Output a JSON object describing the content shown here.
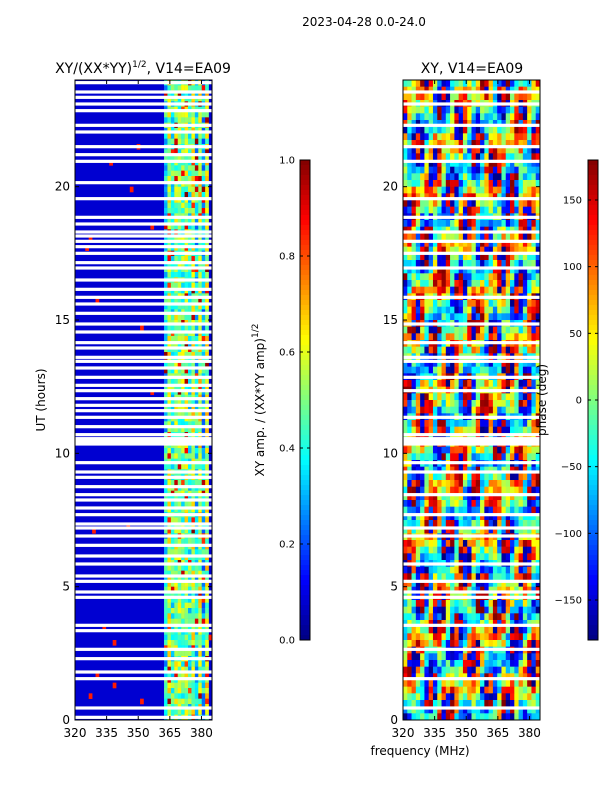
{
  "suptitle": "2023-04-28 0.0-24.0",
  "xlabel_shared": "frequency (MHz)",
  "chart_data": [
    {
      "type": "heatmap",
      "title_main": "XY/(XX*YY)",
      "title_sup": "1/2",
      "title_rest": ", V14=EA09",
      "xlabel": "frequency (MHz)",
      "ylabel": "UT (hours)",
      "xlim": [
        320,
        385
      ],
      "ylim": [
        0,
        24
      ],
      "xticks": [
        320,
        335,
        350,
        365,
        380
      ],
      "yticks": [
        0,
        5,
        10,
        15,
        20
      ],
      "colorbar": {
        "label_main": "XY amp. / (XX*YY amp)",
        "label_sup": "1/2",
        "range": [
          0.0,
          1.0
        ],
        "ticks": [
          "0.0",
          "0.2",
          "0.4",
          "0.6",
          "0.8",
          "1.0"
        ],
        "tick_values": [
          0.0,
          0.2,
          0.4,
          0.6,
          0.8,
          1.0
        ],
        "colormap": "jet"
      },
      "hot_band_mhz": [
        362,
        383
      ],
      "blank_rows_hours": [
        0.1,
        0.45,
        1.55,
        1.8,
        2.3,
        2.65,
        3.35,
        3.55,
        4.6,
        4.8,
        5.2,
        5.4,
        5.85,
        6.15,
        6.55,
        6.9,
        7.2,
        7.35,
        7.7,
        7.95,
        8.25,
        8.45,
        8.75,
        9.1,
        9.3,
        9.65,
        10.35,
        10.45,
        10.55,
        10.7,
        11.0,
        11.35,
        11.6,
        11.8,
        12.05,
        12.35,
        12.55,
        12.85,
        13.2,
        13.45,
        13.6,
        13.95,
        14.15,
        14.55,
        14.85,
        15.25,
        15.6,
        15.85,
        16.15,
        16.5,
        16.95,
        17.15,
        17.5,
        17.75,
        17.95,
        18.15,
        18.3,
        18.6,
        18.85,
        19.55,
        20.15,
        20.95,
        21.2,
        21.5,
        22.05,
        22.3,
        22.85,
        23.1,
        23.35,
        23.55,
        23.9
      ]
    },
    {
      "type": "heatmap",
      "title": "XY, V14=EA09",
      "xlabel": "frequency (MHz)",
      "ylabel": "",
      "xlim": [
        320,
        385
      ],
      "ylim": [
        0,
        24
      ],
      "xticks": [
        320,
        335,
        350,
        365,
        380
      ],
      "yticks": [
        0,
        5,
        10,
        15,
        20
      ],
      "colorbar": {
        "label": "phase (deg)",
        "range": [
          -180,
          180
        ],
        "ticks": [
          "150",
          "100",
          "50",
          "0",
          "−50",
          "−100",
          "−150"
        ],
        "tick_values": [
          150,
          100,
          50,
          0,
          -50,
          -100,
          -150
        ],
        "colormap": "jet"
      },
      "blank_rows_hours": [
        0.45,
        1.55,
        2.65,
        3.55,
        4.6,
        4.8,
        5.2,
        5.85,
        6.9,
        7.2,
        7.7,
        8.45,
        9.3,
        9.65,
        10.35,
        10.45,
        10.55,
        10.7,
        11.35,
        12.35,
        12.85,
        13.45,
        13.6,
        14.15,
        14.85,
        15.85,
        16.95,
        17.5,
        17.95,
        18.3,
        18.85,
        19.55,
        20.95,
        21.5,
        22.3,
        23.1,
        23.55
      ]
    }
  ]
}
